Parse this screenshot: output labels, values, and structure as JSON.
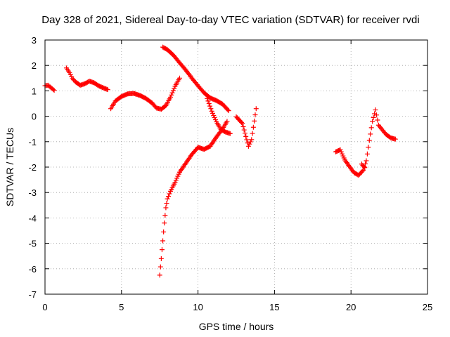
{
  "chart_data": {
    "type": "scatter",
    "title": "Day 328 of 2021, Sidereal Day-to-day VTEC variation (SDTVAR) for receiver rvdi",
    "xlabel": "GPS time / hours",
    "ylabel": "SDTVAR / TECUs",
    "xlim": [
      0,
      25
    ],
    "ylim": [
      -7,
      3
    ],
    "xticks": [
      0,
      5,
      10,
      15,
      20,
      25
    ],
    "yticks": [
      -7,
      -6,
      -5,
      -4,
      -3,
      -2,
      -1,
      0,
      1,
      2,
      3
    ],
    "grid": true,
    "marker": "+",
    "color": "#ff0000",
    "series": [
      {
        "x": [
          0.0,
          0.2,
          0.4,
          0.6
        ],
        "y": [
          1.2,
          1.22,
          1.12,
          1.02
        ]
      },
      {
        "x": [
          1.4,
          1.6,
          1.8,
          2.0,
          2.3,
          2.6,
          2.9,
          3.2,
          3.5,
          3.8,
          4.1
        ],
        "y": [
          1.9,
          1.72,
          1.48,
          1.35,
          1.22,
          1.28,
          1.38,
          1.32,
          1.2,
          1.12,
          1.05
        ]
      },
      {
        "x": [
          4.3,
          4.6,
          5.0,
          5.4,
          5.8,
          6.2,
          6.6,
          7.0,
          7.3,
          7.6,
          7.9,
          8.2,
          8.5,
          8.8
        ],
        "y": [
          0.3,
          0.6,
          0.78,
          0.88,
          0.9,
          0.82,
          0.7,
          0.52,
          0.32,
          0.28,
          0.42,
          0.75,
          1.18,
          1.5
        ]
      },
      {
        "x": [
          7.7,
          8.0,
          8.4,
          8.8,
          9.2,
          9.6,
          10.0,
          10.4,
          10.8,
          11.2,
          11.6,
          12.0
        ],
        "y": [
          2.72,
          2.62,
          2.4,
          2.1,
          1.82,
          1.5,
          1.2,
          0.92,
          0.72,
          0.62,
          0.48,
          0.22
        ]
      },
      {
        "x": [
          10.6,
          10.9,
          11.2,
          11.5,
          11.8,
          12.1
        ],
        "y": [
          0.7,
          0.2,
          -0.22,
          -0.52,
          -0.62,
          -0.68
        ]
      },
      {
        "x": [
          7.5,
          7.6,
          7.7,
          7.8,
          7.9,
          8.0,
          8.2,
          8.5,
          8.8,
          9.2,
          9.6,
          10.0,
          10.4,
          10.8,
          11.2,
          11.6,
          11.9
        ],
        "y": [
          -6.25,
          -5.6,
          -4.9,
          -4.2,
          -3.6,
          -3.25,
          -2.95,
          -2.6,
          -2.2,
          -1.85,
          -1.5,
          -1.22,
          -1.3,
          -1.18,
          -0.82,
          -0.5,
          -0.2
        ]
      },
      {
        "x": [
          12.5,
          12.9,
          13.3,
          13.5,
          13.8
        ],
        "y": [
          -0.02,
          -0.28,
          -1.18,
          -0.92,
          0.3
        ]
      },
      {
        "x": [
          19.0,
          19.3,
          19.6,
          19.9,
          20.2,
          20.5,
          20.8,
          21.0,
          21.2,
          21.4,
          21.6,
          21.8,
          22.0,
          22.3,
          22.6,
          22.9
        ],
        "y": [
          -1.4,
          -1.32,
          -1.72,
          -1.98,
          -2.22,
          -2.32,
          -2.12,
          -1.75,
          -0.95,
          -0.2,
          0.25,
          -0.35,
          -0.5,
          -0.72,
          -0.85,
          -0.9
        ]
      },
      {
        "x": [
          20.7,
          20.9
        ],
        "y": [
          -1.88,
          -2.02
        ]
      }
    ]
  }
}
